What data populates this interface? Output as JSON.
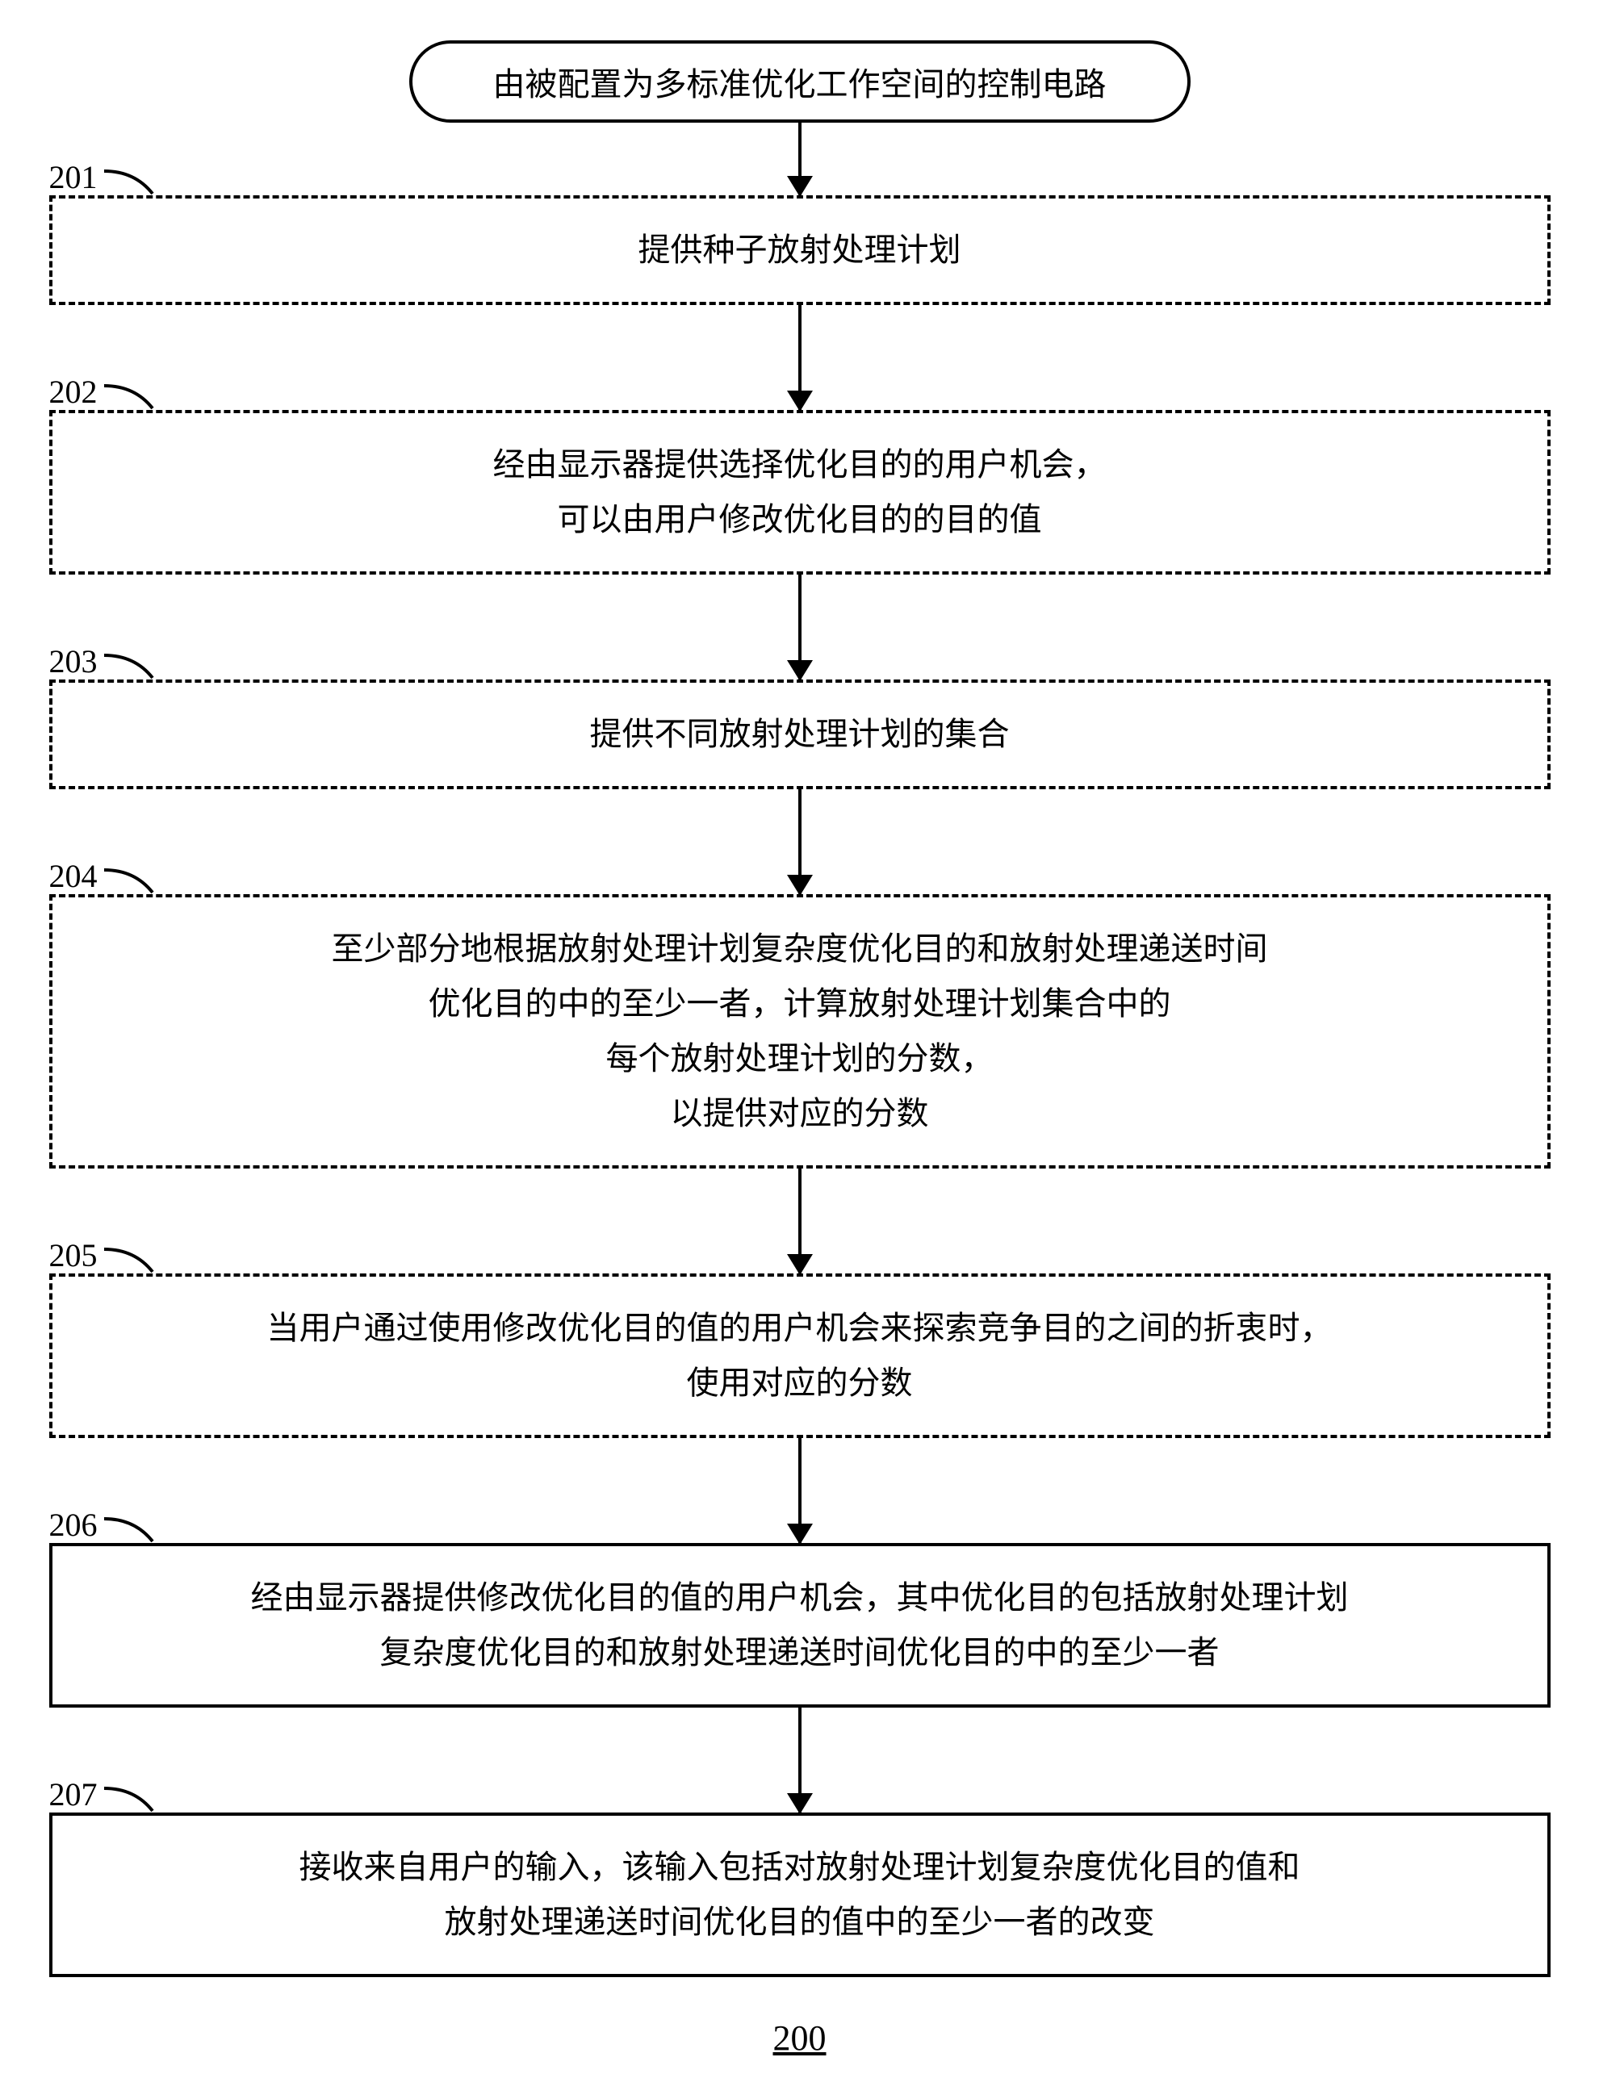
{
  "fontsize_box": 40,
  "fontsize_label": 40,
  "fontsize_fig": 44,
  "border_width": 4,
  "color_line": "#000000",
  "color_bg": "#ffffff",
  "arrow_len_short": 90,
  "arrow_len_gap": 130,
  "terminator": {
    "text": "由被配置为多标准优化工作空间的控制电路"
  },
  "steps": [
    {
      "ref": "201",
      "dashed": true,
      "lines": [
        "提供种子放射处理计划"
      ]
    },
    {
      "ref": "202",
      "dashed": true,
      "lines": [
        "经由显示器提供选择优化目的的用户机会，",
        "可以由用户修改优化目的的目的值"
      ]
    },
    {
      "ref": "203",
      "dashed": true,
      "lines": [
        "提供不同放射处理计划的集合"
      ]
    },
    {
      "ref": "204",
      "dashed": true,
      "lines": [
        "至少部分地根据放射处理计划复杂度优化目的和放射处理递送时间",
        "优化目的中的至少一者，计算放射处理计划集合中的",
        "每个放射处理计划的分数，",
        "以提供对应的分数"
      ]
    },
    {
      "ref": "205",
      "dashed": true,
      "lines": [
        "当用户通过使用修改优化目的值的用户机会来探索竞争目的之间的折衷时，",
        "使用对应的分数"
      ]
    },
    {
      "ref": "206",
      "dashed": false,
      "lines": [
        "经由显示器提供修改优化目的值的用户机会，其中优化目的包括放射处理计划",
        "复杂度优化目的和放射处理递送时间优化目的中的至少一者"
      ]
    },
    {
      "ref": "207",
      "dashed": false,
      "lines": [
        "接收来自用户的输入，该输入包括对放射处理计划复杂度优化目的值和",
        "放射处理递送时间优化目的值中的至少一者的改变"
      ]
    }
  ],
  "figure_number": "200"
}
